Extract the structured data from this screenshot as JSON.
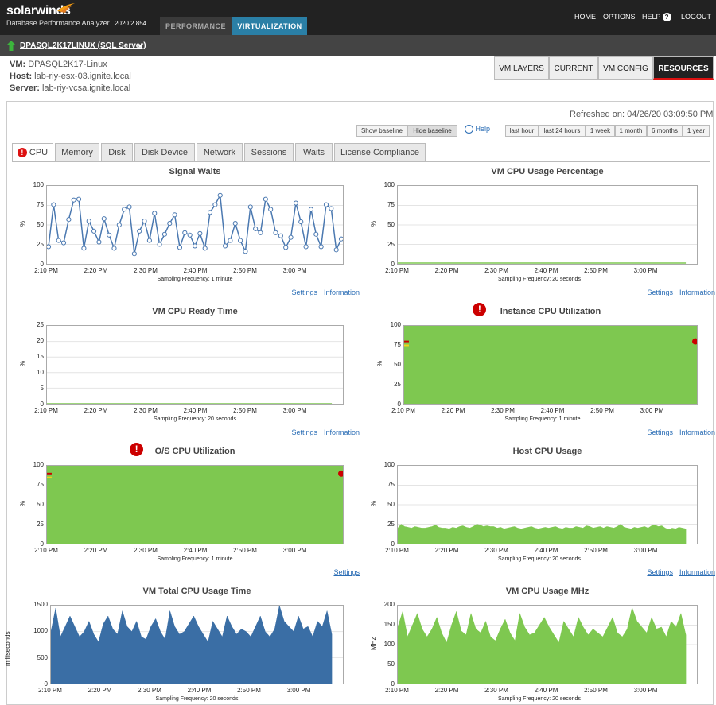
{
  "header": {
    "brand": "solarwinds",
    "product": "Database Performance Analyzer",
    "version": "2020.2.854",
    "tabs": [
      "PERFORMANCE",
      "VIRTUALIZATION"
    ],
    "active_tab": "VIRTUALIZATION",
    "links": {
      "home": "HOME",
      "options": "OPTIONS",
      "help": "HELP",
      "logout": "LOGOUT"
    },
    "help_icon": "?"
  },
  "database": {
    "name": "DPASQL2K17LINUX (SQL Server)",
    "status_icon": "green-up-arrow-icon"
  },
  "vm_info": {
    "vm_label": "VM:",
    "vm": "DPASQL2K17-Linux",
    "host_label": "Host:",
    "host": "lab-riy-esx-03.ignite.local",
    "server_label": "Server:",
    "server": "lab-riy-vcsa.ignite.local"
  },
  "right_tabs": [
    "VM LAYERS",
    "CURRENT",
    "VM CONFIG",
    "RESOURCES"
  ],
  "active_right_tab": "RESOURCES",
  "refreshed": "Refreshed on: 04/26/20 03:09:50 PM",
  "baseline": {
    "show": "Show baseline",
    "hide": "Hide baseline",
    "help": "Help"
  },
  "ranges": [
    "last hour",
    "last 24 hours",
    "1 week",
    "1 month",
    "6 months",
    "1 year"
  ],
  "content_tabs": [
    "CPU",
    "Memory",
    "Disk",
    "Disk Device",
    "Network",
    "Sessions",
    "Waits",
    "License Compliance"
  ],
  "active_content_tab": "CPU",
  "links": {
    "settings": "Settings",
    "information": "Information"
  },
  "colors": {
    "green": "#7ec850",
    "blue": "#3a6ea5",
    "line_blue": "#4a78b0",
    "warn_red": "#cc0000",
    "virt_tab": "#2a7fa6"
  },
  "x_ticks": [
    "2:10 PM",
    "2:20 PM",
    "2:30 PM",
    "2:40 PM",
    "2:50 PM",
    "3:00 PM"
  ],
  "charts": [
    {
      "title": "Signal Waits",
      "ylabel": "%",
      "yticks": [
        "100",
        "75",
        "50",
        "25",
        "0"
      ],
      "freq": "Sampling Frequency: 1 minute",
      "warn": false,
      "links": [
        "settings",
        "information"
      ]
    },
    {
      "title": "VM CPU Usage Percentage",
      "ylabel": "%",
      "yticks": [
        "100",
        "75",
        "50",
        "25",
        "0"
      ],
      "freq": "Sampling Frequency: 20 seconds",
      "warn": false,
      "links": [
        "settings",
        "information"
      ]
    },
    {
      "title": "VM CPU Ready Time",
      "ylabel": "%",
      "yticks": [
        "25",
        "20",
        "15",
        "10",
        "5",
        "0"
      ],
      "freq": "Sampling Frequency: 20 seconds",
      "warn": false,
      "links": [
        "settings",
        "information"
      ]
    },
    {
      "title": "Instance CPU Utilization",
      "ylabel": "%",
      "yticks": [
        "100",
        "75",
        "50",
        "25",
        "0"
      ],
      "freq": "Sampling Frequency: 1 minute",
      "warn": true,
      "links": [
        "settings",
        "information"
      ]
    },
    {
      "title": "O/S CPU Utilization",
      "ylabel": "%",
      "yticks": [
        "100",
        "75",
        "50",
        "25",
        "0"
      ],
      "freq": "Sampling Frequency: 1 minute",
      "warn": true,
      "links": [
        "settings"
      ]
    },
    {
      "title": "Host CPU Usage",
      "ylabel": "%",
      "yticks": [
        "100",
        "75",
        "50",
        "25",
        "0"
      ],
      "freq": "Sampling Frequency: 20 seconds",
      "warn": false,
      "links": [
        "settings",
        "information"
      ]
    },
    {
      "title": "VM Total CPU Usage Time",
      "ylabel": "milliseconds",
      "yticks": [
        "1500",
        "1000",
        "500",
        "0"
      ],
      "freq": "Sampling Frequency: 20 seconds",
      "warn": false,
      "links": []
    },
    {
      "title": "VM CPU Usage MHz",
      "ylabel": "MHz",
      "yticks": [
        "200",
        "150",
        "100",
        "50",
        "0"
      ],
      "freq": "Sampling Frequency: 20 seconds",
      "warn": false,
      "links": []
    }
  ],
  "chart_data": [
    {
      "type": "line",
      "title": "Signal Waits",
      "ylabel": "%",
      "ylim": [
        0,
        100
      ],
      "x": [
        "2:10 PM",
        "2:11 PM",
        "2:12 PM",
        "2:13 PM",
        "2:14 PM",
        "2:15 PM",
        "2:16 PM",
        "2:17 PM",
        "2:18 PM",
        "2:19 PM",
        "2:20 PM",
        "2:21 PM",
        "2:22 PM",
        "2:23 PM",
        "2:24 PM",
        "2:25 PM",
        "2:26 PM",
        "2:27 PM",
        "2:28 PM",
        "2:29 PM",
        "2:30 PM",
        "2:31 PM",
        "2:32 PM",
        "2:33 PM",
        "2:34 PM",
        "2:35 PM",
        "2:36 PM",
        "2:37 PM",
        "2:38 PM",
        "2:39 PM",
        "2:40 PM",
        "2:41 PM",
        "2:42 PM",
        "2:43 PM",
        "2:44 PM",
        "2:45 PM",
        "2:46 PM",
        "2:47 PM",
        "2:48 PM",
        "2:49 PM",
        "2:50 PM",
        "2:51 PM",
        "2:52 PM",
        "2:53 PM",
        "2:54 PM",
        "2:55 PM",
        "2:56 PM",
        "2:57 PM",
        "2:58 PM",
        "2:59 PM",
        "3:00 PM",
        "3:01 PM",
        "3:02 PM",
        "3:03 PM",
        "3:04 PM",
        "3:05 PM",
        "3:06 PM",
        "3:07 PM",
        "3:08 PM"
      ],
      "values": [
        22,
        76,
        30,
        27,
        57,
        82,
        83,
        20,
        55,
        42,
        28,
        58,
        37,
        20,
        50,
        70,
        73,
        13,
        42,
        55,
        30,
        65,
        25,
        38,
        52,
        63,
        21,
        40,
        37,
        23,
        39,
        20,
        66,
        76,
        88,
        23,
        30,
        52,
        30,
        16,
        73,
        45,
        40,
        83,
        70,
        40,
        36,
        21,
        34,
        78,
        54,
        22,
        70,
        38,
        22,
        76,
        71,
        18,
        32
      ],
      "series_name": "",
      "style": "blue line with open circle markers"
    },
    {
      "type": "area",
      "title": "VM CPU Usage Percentage",
      "ylim": [
        0,
        100
      ],
      "values_note_level": 1
    },
    {
      "type": "area",
      "title": "VM CPU Ready Time",
      "ylim": [
        0,
        25
      ],
      "values_note_level": 0
    },
    {
      "type": "area",
      "title": "Instance CPU Utilization",
      "ylim": [
        0,
        100
      ],
      "value_level": 100,
      "baseline_markers": [
        80,
        75
      ]
    },
    {
      "type": "area",
      "title": "O/S CPU Utilization",
      "ylim": [
        0,
        100
      ],
      "value_level": 100,
      "baseline_markers": [
        90,
        85
      ]
    },
    {
      "type": "area",
      "title": "Host CPU Usage",
      "ylim": [
        0,
        100
      ],
      "values": [
        20,
        25,
        22,
        21,
        20,
        22,
        21,
        20,
        20,
        21,
        22,
        24,
        21,
        20,
        20,
        19,
        21,
        20,
        22,
        23,
        21,
        20,
        22,
        25,
        24,
        22,
        23,
        22,
        22,
        20,
        21,
        19,
        20,
        21,
        22,
        20,
        19,
        20,
        21,
        22,
        20,
        19,
        20,
        21,
        20,
        21,
        22,
        20,
        19,
        21,
        20,
        20,
        22,
        21,
        20,
        23,
        22,
        20,
        21,
        22,
        20,
        22,
        21,
        20,
        22,
        25,
        21,
        20,
        19,
        21,
        20,
        21,
        22,
        20,
        23,
        24,
        22,
        23,
        20,
        18,
        20,
        19,
        21,
        20,
        19
      ]
    },
    {
      "type": "area",
      "title": "VM Total CPU Usage Time",
      "ylim": [
        0,
        1500
      ],
      "ylabel": "milliseconds",
      "values": [
        1000,
        1450,
        900,
        1100,
        1300,
        1100,
        900,
        1000,
        1200,
        950,
        800,
        1150,
        1300,
        1050,
        950,
        1400,
        1100,
        1000,
        1200,
        900,
        850,
        1100,
        1250,
        1000,
        850,
        1400,
        1100,
        950,
        1000,
        1150,
        1300,
        1100,
        950,
        800,
        1200,
        1050,
        900,
        1300,
        1100,
        950,
        1050,
        1000,
        900,
        1100,
        1300,
        1000,
        900,
        1050,
        1500,
        1200,
        1100,
        1000,
        1300,
        1050,
        1100,
        900,
        1200,
        1100,
        1400,
        950
      ]
    },
    {
      "type": "area",
      "title": "VM CPU Usage MHz",
      "ylim": [
        0,
        200
      ],
      "ylabel": "MHz",
      "values": [
        145,
        185,
        120,
        150,
        180,
        140,
        120,
        140,
        170,
        130,
        105,
        150,
        185,
        135,
        125,
        180,
        140,
        130,
        160,
        120,
        110,
        140,
        165,
        130,
        110,
        180,
        145,
        125,
        130,
        150,
        170,
        145,
        125,
        105,
        160,
        140,
        120,
        170,
        145,
        125,
        140,
        130,
        120,
        145,
        170,
        130,
        120,
        140,
        195,
        160,
        145,
        130,
        170,
        140,
        145,
        120,
        160,
        145,
        180,
        125
      ]
    }
  ]
}
